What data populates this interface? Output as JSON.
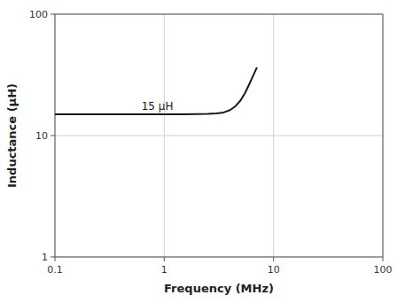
{
  "chart_data": {
    "type": "line",
    "title": "",
    "xlabel": "Frequency (MHz)",
    "ylabel": "Inductance (μH)",
    "x": [
      0.1,
      0.2,
      0.3,
      0.5,
      0.7,
      1.0,
      1.5,
      2.0,
      2.5,
      3.0,
      3.5,
      4.0,
      4.5,
      5.0,
      5.5,
      6.0,
      6.5,
      7.0
    ],
    "values": [
      15.0,
      15.0,
      15.0,
      15.0,
      15.0,
      15.0,
      15.0,
      15.05,
      15.1,
      15.2,
      15.5,
      16.2,
      17.5,
      19.5,
      22.5,
      26.5,
      31.0,
      36.0
    ],
    "color": "#1a1a1a",
    "xlim": [
      0.1,
      100
    ],
    "ylim": [
      1,
      100
    ],
    "xticks": [
      0.1,
      1,
      10,
      100
    ],
    "yticks": [
      1,
      10,
      100
    ],
    "log": true,
    "grid": true,
    "annotations": [
      {
        "text": "15 μH",
        "x": 0.62,
        "y": 16.2
      }
    ]
  }
}
